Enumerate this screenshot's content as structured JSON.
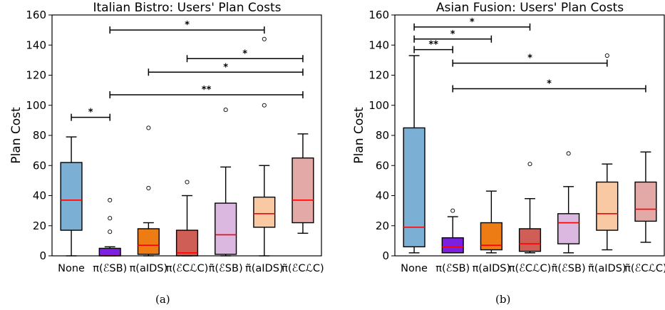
{
  "captions": [
    "(a)",
    "(b)"
  ],
  "chart_data": [
    {
      "type": "boxplot",
      "title": "Italian Bistro: Users' Plan Costs",
      "ylabel": "Plan Cost",
      "xlabel": "",
      "ylim": [
        0,
        160
      ],
      "yticks": [
        0,
        20,
        40,
        60,
        80,
        100,
        120,
        140,
        160
      ],
      "categories": [
        "None",
        "π(ℰSB)",
        "π(aIDS)",
        "π(ℰCℒC)",
        "π̃(ℰSB)",
        "π̃(aIDS)",
        "π̃(ℰCℒC)"
      ],
      "boxes": [
        {
          "label": "None",
          "color": "#7bafd4",
          "whislo": 0,
          "q1": 17,
          "med": 37,
          "q3": 62,
          "whishi": 79,
          "fliers": []
        },
        {
          "label": "π(ℰSB)",
          "color": "#7b1fe0",
          "whislo": 0,
          "q1": 0,
          "med": 0,
          "q3": 5,
          "whishi": 6,
          "fliers": [
            16,
            25,
            37
          ]
        },
        {
          "label": "π(aIDS)",
          "color": "#ee7c14",
          "whislo": 0,
          "q1": 1,
          "med": 7,
          "q3": 18,
          "whishi": 22,
          "fliers": [
            45,
            85
          ]
        },
        {
          "label": "π(ℰCℒC)",
          "color": "#cf5f56",
          "whislo": 0,
          "q1": 0,
          "med": 2,
          "q3": 17,
          "whishi": 40,
          "fliers": [
            49
          ]
        },
        {
          "label": "π̃(ℰSB)",
          "color": "#dbb8e0",
          "whislo": 0,
          "q1": 1,
          "med": 14,
          "q3": 35,
          "whishi": 59,
          "fliers": [
            97
          ]
        },
        {
          "label": "π̃(aIDS)",
          "color": "#f8c9a2",
          "whislo": 0,
          "q1": 19,
          "med": 28,
          "q3": 39,
          "whishi": 60,
          "fliers": [
            100,
            144
          ]
        },
        {
          "label": "π̃(ℰCℒC)",
          "color": "#e3a9a6",
          "whislo": 15,
          "q1": 22,
          "med": 37,
          "q3": 65,
          "whishi": 81,
          "fliers": []
        }
      ],
      "significance": [
        {
          "from": 0,
          "to": 1,
          "y": 92,
          "label": "*"
        },
        {
          "from": 1,
          "to": 6,
          "y": 107,
          "label": "**"
        },
        {
          "from": 2,
          "to": 6,
          "y": 122,
          "label": "*"
        },
        {
          "from": 3,
          "to": 6,
          "y": 131,
          "label": "*"
        },
        {
          "from": 1,
          "to": 5,
          "y": 150,
          "label": "*"
        }
      ]
    },
    {
      "type": "boxplot",
      "title": "Asian Fusion: Users' Plan Costs",
      "ylabel": "Plan Cost",
      "xlabel": "",
      "ylim": [
        0,
        160
      ],
      "yticks": [
        0,
        20,
        40,
        60,
        80,
        100,
        120,
        140,
        160
      ],
      "categories": [
        "None",
        "π(ℰSB)",
        "π(aIDS)",
        "π(ℰCℒC)",
        "π̃(ℰSB)",
        "π̃(aIDS)",
        "π̃(ℰCℒC)"
      ],
      "boxes": [
        {
          "label": "None",
          "color": "#7bafd4",
          "whislo": 2,
          "q1": 6,
          "med": 19,
          "q3": 85,
          "whishi": 133,
          "fliers": []
        },
        {
          "label": "π(ℰSB)",
          "color": "#7b1fe0",
          "whislo": 2,
          "q1": 2,
          "med": 6,
          "q3": 12,
          "whishi": 26,
          "fliers": [
            30
          ]
        },
        {
          "label": "π(aIDS)",
          "color": "#ee7c14",
          "whislo": 2,
          "q1": 4,
          "med": 7,
          "q3": 22,
          "whishi": 43,
          "fliers": []
        },
        {
          "label": "π(ℰCℒC)",
          "color": "#cf5f56",
          "whislo": 2,
          "q1": 3,
          "med": 8,
          "q3": 18,
          "whishi": 38,
          "fliers": [
            61
          ]
        },
        {
          "label": "π̃(ℰSB)",
          "color": "#dbb8e0",
          "whislo": 2,
          "q1": 8,
          "med": 22,
          "q3": 28,
          "whishi": 46,
          "fliers": [
            68
          ]
        },
        {
          "label": "π̃(aIDS)",
          "color": "#f8c9a2",
          "whislo": 4,
          "q1": 17,
          "med": 28,
          "q3": 49,
          "whishi": 61,
          "fliers": [
            133
          ]
        },
        {
          "label": "π̃(ℰCℒC)",
          "color": "#e3a9a6",
          "whislo": 9,
          "q1": 23,
          "med": 31,
          "q3": 49,
          "whishi": 69,
          "fliers": []
        }
      ],
      "significance": [
        {
          "from": 1,
          "to": 6,
          "y": 111,
          "label": "*"
        },
        {
          "from": 1,
          "to": 5,
          "y": 128,
          "label": "*"
        },
        {
          "from": 0,
          "to": 1,
          "y": 137,
          "label": "**"
        },
        {
          "from": 0,
          "to": 2,
          "y": 144,
          "label": "*"
        },
        {
          "from": 0,
          "to": 3,
          "y": 152,
          "label": "*"
        }
      ]
    }
  ]
}
